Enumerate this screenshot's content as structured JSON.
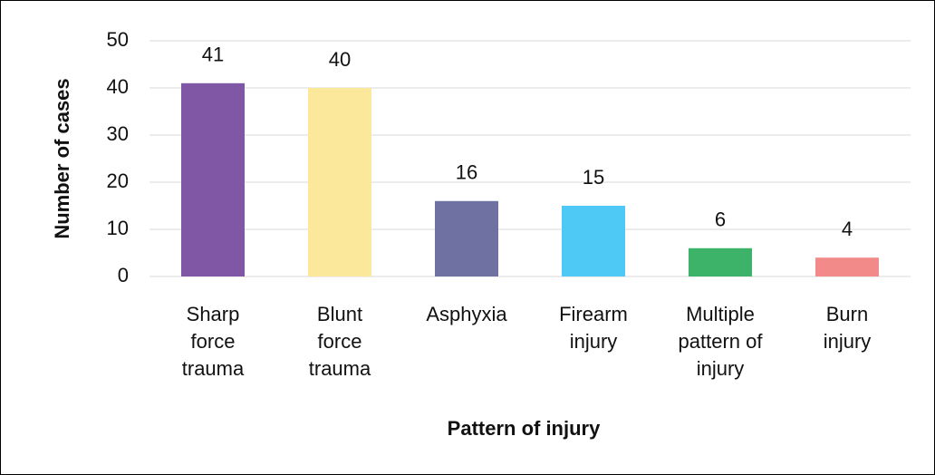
{
  "chart_data": {
    "type": "bar",
    "categories": [
      "Sharp force trauma",
      "Blunt force trauma",
      "Asphyxia",
      "Firearm injury",
      "Multiple pattern of injury",
      "Burn injury"
    ],
    "values": [
      41,
      40,
      16,
      15,
      6,
      4
    ],
    "colors": [
      "#7f57a5",
      "#fce89a",
      "#7071a3",
      "#4ec8f4",
      "#3db36a",
      "#f28a8a"
    ],
    "x_label": "Pattern of injury",
    "y_label": "Number of cases",
    "ylim": [
      0,
      50
    ],
    "yticks": [
      0,
      10,
      20,
      30,
      40,
      50
    ],
    "grid": true
  }
}
